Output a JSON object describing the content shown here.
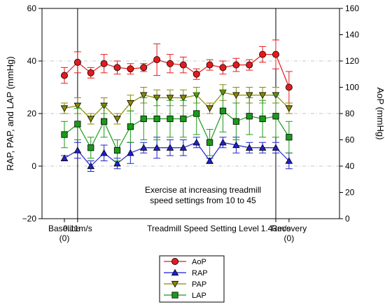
{
  "chart_data": {
    "type": "line",
    "ylabel_left": "RAP, PAP, and LAP (mmHg)",
    "ylabel_right": "AoP (mmHg)",
    "xlabel": "Treadmill Speed Setting Level",
    "y_left_range": [
      -20,
      60
    ],
    "y_left_ticks": [
      "60",
      "40",
      "20",
      "0",
      "−20"
    ],
    "y_right_range": [
      0,
      160
    ],
    "y_right_ticks": [
      "160",
      "140",
      "120",
      "100",
      "80",
      "60",
      "40",
      "20",
      "0"
    ],
    "x_tick_labels": [
      {
        "index": 0,
        "lines": [
          "Baseline",
          "(0)"
        ]
      },
      {
        "index": 1,
        "lines": [
          "0.11m/s"
        ]
      },
      {
        "index": 16,
        "lines": [
          "1.43m/s"
        ]
      },
      {
        "index": 17,
        "lines": [
          "Recovery",
          "(0)"
        ]
      }
    ],
    "vertical_lines_at_index": [
      1,
      16
    ],
    "annotation": [
      "Exercise at increasing treadmill",
      "speed settings from 10 to 45"
    ],
    "grid": "dashed horizontal lines at left-axis 40, 20, 0",
    "legend_placement": "bottom-center",
    "series": [
      {
        "name": "AoP",
        "axis": "right",
        "color": "#e41a1c",
        "marker": "circle",
        "x": [
          0,
          1,
          2,
          3,
          4,
          5,
          6,
          7,
          8,
          9,
          10,
          11,
          12,
          13,
          14,
          15,
          16,
          17
        ],
        "values": [
          109,
          119,
          111,
          118,
          115,
          114,
          115,
          121,
          118,
          117,
          110,
          117,
          115,
          117,
          117,
          125,
          125,
          100
        ],
        "err": [
          6,
          8,
          4,
          7,
          5,
          4,
          3,
          12,
          7,
          6,
          4,
          4,
          5,
          5,
          4,
          6,
          11,
          12
        ]
      },
      {
        "name": "RAP",
        "axis": "left",
        "color": "#1f1fd1",
        "marker": "triangle-up",
        "x": [
          0,
          1,
          2,
          3,
          4,
          5,
          6,
          7,
          8,
          9,
          10,
          11,
          12,
          13,
          14,
          15,
          16,
          17
        ],
        "values": [
          3,
          6,
          0,
          5,
          1,
          5,
          7,
          7,
          7,
          7,
          9,
          2,
          9,
          8,
          7,
          7,
          7,
          2
        ],
        "err": [
          1,
          3,
          2,
          3,
          2,
          4,
          2,
          4,
          3,
          3,
          2,
          1,
          2,
          3,
          2,
          2,
          2,
          3
        ]
      },
      {
        "name": "PAP",
        "axis": "left",
        "color": "#8a8a00",
        "marker": "triangle-down",
        "x": [
          0,
          1,
          2,
          3,
          4,
          5,
          6,
          7,
          8,
          9,
          10,
          11,
          12,
          13,
          14,
          15,
          16,
          17
        ],
        "values": [
          22,
          23,
          18,
          23,
          18,
          24,
          27,
          26,
          26,
          26,
          27,
          22,
          28,
          27,
          27,
          27,
          27,
          22
        ],
        "err": [
          2,
          3,
          2,
          3,
          2,
          3,
          3,
          3,
          3,
          3,
          3,
          2,
          3,
          3,
          3,
          3,
          3,
          2
        ]
      },
      {
        "name": "LAP",
        "axis": "left",
        "color": "#1a9a1a",
        "marker": "square",
        "x": [
          0,
          1,
          2,
          3,
          4,
          5,
          6,
          7,
          8,
          9,
          10,
          11,
          12,
          13,
          14,
          15,
          16,
          17
        ],
        "values": [
          12,
          16,
          7,
          17,
          6,
          15,
          18,
          18,
          18,
          18,
          20,
          9,
          21,
          17,
          19,
          18,
          19,
          11
        ],
        "err": [
          5,
          6,
          4,
          6,
          4,
          6,
          8,
          8,
          7,
          7,
          8,
          5,
          8,
          7,
          7,
          7,
          8,
          6
        ]
      }
    ]
  }
}
